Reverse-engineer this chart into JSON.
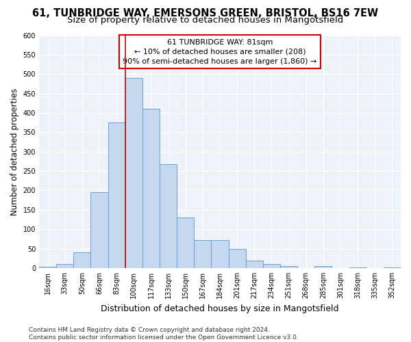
{
  "title_line1": "61, TUNBRIDGE WAY, EMERSONS GREEN, BRISTOL, BS16 7EW",
  "title_line2": "Size of property relative to detached houses in Mangotsfield",
  "xlabel": "Distribution of detached houses by size in Mangotsfield",
  "ylabel": "Number of detached properties",
  "categories": [
    "16sqm",
    "33sqm",
    "50sqm",
    "66sqm",
    "83sqm",
    "100sqm",
    "117sqm",
    "133sqm",
    "150sqm",
    "167sqm",
    "184sqm",
    "201sqm",
    "217sqm",
    "234sqm",
    "251sqm",
    "268sqm",
    "285sqm",
    "301sqm",
    "318sqm",
    "335sqm",
    "352sqm"
  ],
  "values": [
    3,
    10,
    40,
    195,
    375,
    490,
    410,
    268,
    130,
    73,
    73,
    50,
    20,
    10,
    5,
    0,
    5,
    0,
    2,
    0,
    2
  ],
  "bar_color": "#c5d8f0",
  "bar_edge_color": "#6a9fd4",
  "vline_x": 4.5,
  "vline_color": "#cc0000",
  "annotation_text": "61 TUNBRIDGE WAY: 81sqm\n← 10% of detached houses are smaller (208)\n90% of semi-detached houses are larger (1,860) →",
  "annotation_box_color": "white",
  "annotation_box_edge_color": "#cc0000",
  "ylim": [
    0,
    600
  ],
  "yticks": [
    0,
    50,
    100,
    150,
    200,
    250,
    300,
    350,
    400,
    450,
    500,
    550,
    600
  ],
  "background_color": "#eef2f9",
  "footer_text": "Contains HM Land Registry data © Crown copyright and database right 2024.\nContains public sector information licensed under the Open Government Licence v3.0.",
  "title_fontsize": 10.5,
  "subtitle_fontsize": 9.5,
  "tick_fontsize": 7,
  "xlabel_fontsize": 9,
  "ylabel_fontsize": 8.5,
  "annotation_fontsize": 8,
  "footer_fontsize": 6.5,
  "bar_width": 1.0
}
